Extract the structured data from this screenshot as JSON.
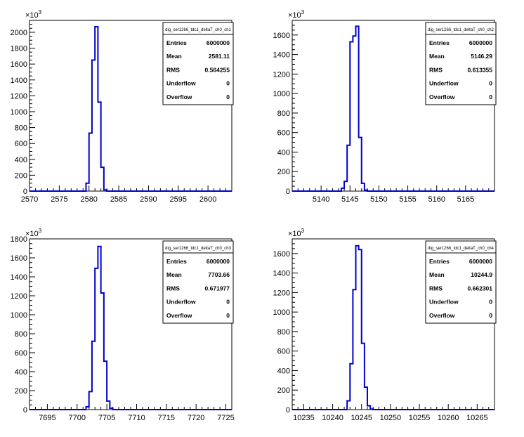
{
  "chart_data": [
    {
      "type": "histogram",
      "name": "dig_ser1266_tdc1_deltaT_ch0_ch1",
      "exponent_label": "×10",
      "exponent": "3",
      "xlim": [
        2570,
        2604
      ],
      "ylim": [
        0,
        2150
      ],
      "x_ticks": [
        2570,
        2575,
        2580,
        2585,
        2590,
        2595,
        2600
      ],
      "y_ticks": [
        0,
        200,
        400,
        600,
        800,
        1000,
        1200,
        1400,
        1600,
        1800,
        2000
      ],
      "bin_width": 0.5,
      "bins": [
        [
          2579.5,
          100
        ],
        [
          2580.0,
          730
        ],
        [
          2580.5,
          1650
        ],
        [
          2581.0,
          2070
        ],
        [
          2581.5,
          1120
        ],
        [
          2582.0,
          300
        ],
        [
          2582.5,
          15
        ]
      ],
      "stats": [
        {
          "label": "Entries",
          "value": "6000000"
        },
        {
          "label": "Mean",
          "value": "2581.11"
        },
        {
          "label": "RMS",
          "value": "0.564255"
        },
        {
          "label": "Underflow",
          "value": "0"
        },
        {
          "label": "Overflow",
          "value": "0"
        }
      ]
    },
    {
      "type": "histogram",
      "name": "dig_ser1266_tdc1_deltaT_ch0_ch2",
      "exponent_label": "×10",
      "exponent": "3",
      "xlim": [
        5135,
        5170
      ],
      "ylim": [
        0,
        1750
      ],
      "x_ticks": [
        5140,
        5145,
        5150,
        5155,
        5160,
        5165
      ],
      "y_ticks": [
        0,
        200,
        400,
        600,
        800,
        1000,
        1200,
        1400,
        1600
      ],
      "bin_width": 0.5,
      "bins": [
        [
          5143.5,
          30
        ],
        [
          5144.0,
          100
        ],
        [
          5144.5,
          470
        ],
        [
          5145.0,
          1530
        ],
        [
          5145.5,
          1590
        ],
        [
          5146.0,
          1690
        ],
        [
          5146.5,
          550
        ],
        [
          5147.0,
          80
        ],
        [
          5147.5,
          10
        ]
      ],
      "stats": [
        {
          "label": "Entries",
          "value": "6000000"
        },
        {
          "label": "Mean",
          "value": "5146.29"
        },
        {
          "label": "RMS",
          "value": "0.613355"
        },
        {
          "label": "Underflow",
          "value": "0"
        },
        {
          "label": "Overflow",
          "value": "0"
        }
      ]
    },
    {
      "type": "histogram",
      "name": "dig_ser1266_tdc1_deltaT_ch0_ch3",
      "exponent_label": "×10",
      "exponent": "3",
      "xlim": [
        7692,
        7726
      ],
      "ylim": [
        0,
        1800
      ],
      "x_ticks": [
        7695,
        7700,
        7705,
        7710,
        7715,
        7720,
        7725
      ],
      "y_ticks": [
        0,
        200,
        400,
        600,
        800,
        1000,
        1200,
        1400,
        1600,
        1800
      ],
      "bin_width": 0.5,
      "bins": [
        [
          7701.5,
          30
        ],
        [
          7702.0,
          190
        ],
        [
          7702.5,
          720
        ],
        [
          7703.0,
          1490
        ],
        [
          7703.5,
          1720
        ],
        [
          7704.0,
          1230
        ],
        [
          7704.5,
          510
        ],
        [
          7705.0,
          90
        ],
        [
          7705.5,
          15
        ]
      ],
      "stats": [
        {
          "label": "Entries",
          "value": "6000000"
        },
        {
          "label": "Mean",
          "value": "7703.66"
        },
        {
          "label": "RMS",
          "value": "0.671977"
        },
        {
          "label": "Underflow",
          "value": "0"
        },
        {
          "label": "Overflow",
          "value": "0"
        }
      ]
    },
    {
      "type": "histogram",
      "name": "dig_ser1266_tdc1_deltaT_ch0_ch4",
      "exponent_label": "×10",
      "exponent": "3",
      "xlim": [
        10233,
        10268
      ],
      "ylim": [
        0,
        1750
      ],
      "x_ticks": [
        10235,
        10240,
        10245,
        10250,
        10255,
        10260,
        10265
      ],
      "y_ticks": [
        0,
        200,
        400,
        600,
        800,
        1000,
        1200,
        1400,
        1600
      ],
      "bin_width": 0.5,
      "bins": [
        [
          10242.5,
          90
        ],
        [
          10243.0,
          470
        ],
        [
          10243.5,
          1230
        ],
        [
          10244.0,
          1680
        ],
        [
          10244.5,
          1640
        ],
        [
          10245.0,
          680
        ],
        [
          10245.5,
          230
        ],
        [
          10246.0,
          40
        ],
        [
          10246.5,
          5
        ]
      ],
      "stats": [
        {
          "label": "Entries",
          "value": "6000000"
        },
        {
          "label": "Mean",
          "value": "10244.9"
        },
        {
          "label": "RMS",
          "value": "0.662301"
        },
        {
          "label": "Underflow",
          "value": "0"
        },
        {
          "label": "Overflow",
          "value": "0"
        }
      ]
    }
  ],
  "colors": {
    "histogram_line": "#0000cc",
    "axes": "#000000",
    "background": "#ffffff"
  }
}
